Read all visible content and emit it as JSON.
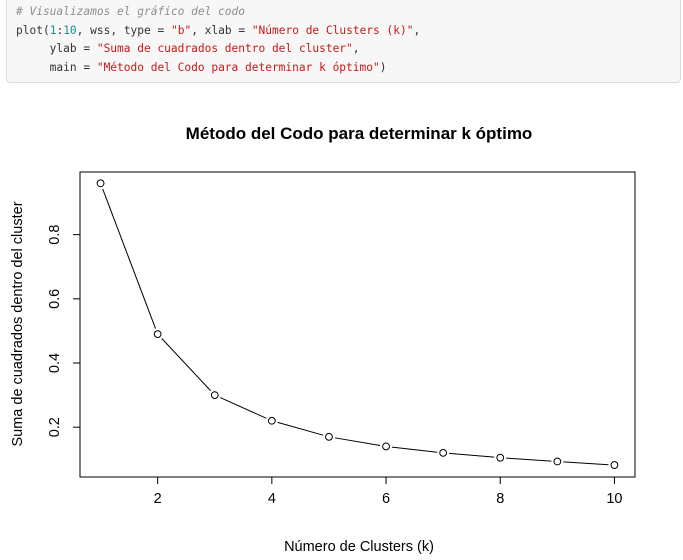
{
  "code": {
    "lines": [
      [
        {
          "t": "comment",
          "s": "# Visualizamos el gráfico del codo"
        }
      ],
      [
        {
          "t": "plain",
          "s": "plot("
        },
        {
          "t": "num",
          "s": "1"
        },
        {
          "t": "plain",
          "s": ":"
        },
        {
          "t": "num",
          "s": "10"
        },
        {
          "t": "plain",
          "s": ", wss, type = "
        },
        {
          "t": "str",
          "s": "\"b\""
        },
        {
          "t": "plain",
          "s": ", xlab = "
        },
        {
          "t": "str",
          "s": "\"Número de Clusters (k)\""
        },
        {
          "t": "plain",
          "s": ","
        }
      ],
      [
        {
          "t": "plain",
          "s": "     ylab = "
        },
        {
          "t": "str",
          "s": "\"Suma de cuadrados dentro del cluster\""
        },
        {
          "t": "plain",
          "s": ","
        }
      ],
      [
        {
          "t": "plain",
          "s": "     main = "
        },
        {
          "t": "str",
          "s": "\"Método del Codo para determinar k óptimo\""
        },
        {
          "t": "plain",
          "s": ")"
        }
      ]
    ]
  },
  "chart_data": {
    "type": "line",
    "title": "Método del Codo para determinar k óptimo",
    "xlabel": "Número de Clusters (k)",
    "ylabel": "Suma de cuadrados dentro del cluster",
    "x": [
      1,
      2,
      3,
      4,
      5,
      6,
      7,
      8,
      9,
      10
    ],
    "y": [
      0.96,
      0.49,
      0.3,
      0.22,
      0.17,
      0.14,
      0.12,
      0.105,
      0.093,
      0.082
    ],
    "xlim": [
      0.64,
      10.36
    ],
    "ylim": [
      0.0448,
      0.9952
    ],
    "xticks": [
      2,
      4,
      6,
      8,
      10
    ],
    "xtick_labels": [
      "2",
      "4",
      "6",
      "8",
      "10"
    ],
    "yticks": [
      0.2,
      0.4,
      0.6,
      0.8
    ],
    "ytick_labels": [
      "0.2",
      "0.4",
      "0.6",
      "0.8"
    ],
    "markers": "open-circle",
    "grid": false,
    "legend": "none",
    "colors": {
      "line": "#000000",
      "marker": "#000000"
    }
  }
}
